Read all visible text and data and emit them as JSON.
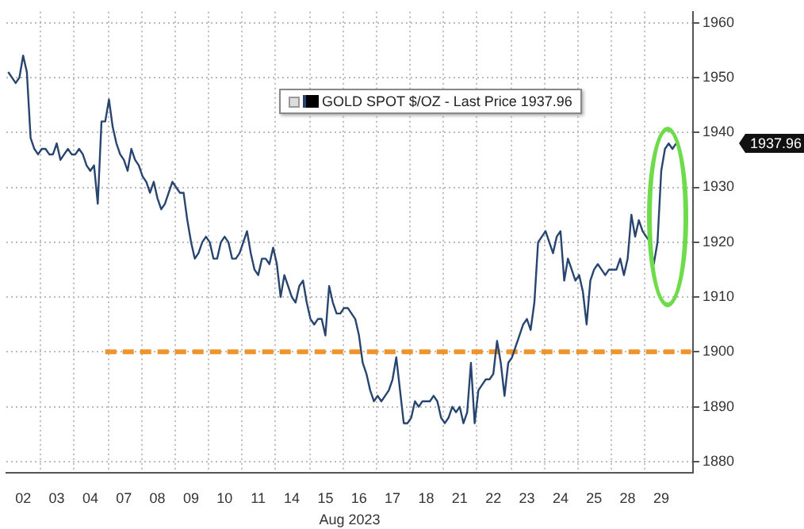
{
  "chart_data": {
    "type": "line",
    "xlabel": "Aug 2023",
    "legend": "top",
    "grid": true,
    "line_style": "solid",
    "marker": "none",
    "ylim": [
      1878,
      1962
    ],
    "categories": [
      null,
      null,
      null,
      null,
      "02",
      null,
      null,
      null,
      null,
      null,
      null,
      null,
      null,
      "03",
      null,
      null,
      null,
      null,
      null,
      null,
      null,
      null,
      "04",
      null,
      null,
      null,
      null,
      null,
      null,
      null,
      null,
      "07",
      null,
      null,
      null,
      null,
      null,
      null,
      null,
      null,
      "08",
      null,
      null,
      null,
      null,
      null,
      null,
      null,
      null,
      "09",
      null,
      null,
      null,
      null,
      null,
      null,
      null,
      null,
      "10",
      null,
      null,
      null,
      null,
      null,
      null,
      null,
      null,
      "11",
      null,
      null,
      null,
      null,
      null,
      null,
      null,
      null,
      "14",
      null,
      null,
      null,
      null,
      null,
      null,
      null,
      null,
      "15",
      null,
      null,
      null,
      null,
      null,
      null,
      null,
      null,
      "16",
      null,
      null,
      null,
      null,
      null,
      null,
      null,
      null,
      "17",
      null,
      null,
      null,
      null,
      null,
      null,
      null,
      null,
      "18",
      null,
      null,
      null,
      null,
      null,
      null,
      null,
      null,
      "21",
      null,
      null,
      null,
      null,
      null,
      null,
      null,
      null,
      "22",
      null,
      null,
      null,
      null,
      null,
      null,
      null,
      null,
      "23",
      null,
      null,
      null,
      null,
      null,
      null,
      null,
      null,
      "24",
      null,
      null,
      null,
      null,
      null,
      null,
      null,
      null,
      "25",
      null,
      null,
      null,
      null,
      null,
      null,
      null,
      null,
      "28",
      null,
      null,
      null,
      null,
      null,
      null,
      null,
      null,
      "29",
      null,
      null,
      null,
      null,
      null,
      null,
      null,
      null
    ],
    "yticks": [
      1880,
      1890,
      1900,
      1910,
      1920,
      1930,
      1940,
      1950,
      1960
    ],
    "annotations": [
      "1937.96"
    ],
    "series": [
      {
        "name": "GOLD SPOT $/OZ - Last Price 1937.96",
        "color": "#27456e",
        "values": [
          1951,
          1950,
          1949,
          1950,
          1954,
          1951,
          1939,
          1937,
          1936,
          1937,
          1937,
          1936,
          1936,
          1938,
          1935,
          1936,
          1937,
          1936,
          1936,
          1937,
          1936,
          1934,
          1933,
          1934,
          1927,
          1942,
          1942,
          1946,
          1941,
          1938,
          1936,
          1935,
          1933,
          1937,
          1935,
          1934,
          1932,
          1931,
          1929,
          1931,
          1928,
          1926,
          1927,
          1929,
          1931,
          1930,
          1929,
          1929,
          1924,
          1920,
          1917,
          1918,
          1920,
          1921,
          1920,
          1917,
          1917,
          1920,
          1921,
          1920,
          1917,
          1917,
          1918,
          1920,
          1922,
          1918,
          1915,
          1914,
          1917,
          1917,
          1916,
          1919,
          1916,
          1910,
          1914,
          1912,
          1910,
          1909,
          1912,
          1913,
          1909,
          1906,
          1905,
          1906,
          1906,
          1903,
          1912,
          1909,
          1907,
          1907,
          1908,
          1908,
          1907,
          1906,
          1903,
          1898,
          1896,
          1893,
          1891,
          1892,
          1891,
          1892,
          1893,
          1895,
          1899,
          1893,
          1887,
          1887,
          1888,
          1891,
          1890,
          1891,
          1891,
          1891,
          1892,
          1891,
          1888,
          1887,
          1888,
          1890,
          1889,
          1890,
          1887,
          1889,
          1898,
          1887,
          1893,
          1894,
          1895,
          1895,
          1896,
          1902,
          1898,
          1892,
          1898,
          1899,
          1901,
          1903,
          1905,
          1906,
          1904,
          1909,
          1920,
          1921,
          1922,
          1920,
          1918,
          1921,
          1922,
          1913,
          1917,
          1915,
          1913,
          1914,
          1911,
          1905,
          1913,
          1915,
          1916,
          1915,
          1914,
          1915,
          1915,
          1915,
          1917,
          1914,
          1917,
          1925,
          1921,
          1924,
          1922,
          1921,
          1920,
          1916,
          1920,
          1933,
          1937,
          1938,
          1937,
          1938,
          null,
          null,
          null,
          null
        ]
      },
      {
        "color": "#f0932b",
        "line_style": "dashed",
        "values": [
          null,
          null,
          null,
          null,
          null,
          null,
          null,
          null,
          null,
          null,
          null,
          null,
          null,
          null,
          null,
          null,
          null,
          null,
          null,
          null,
          null,
          null,
          null,
          null,
          null,
          null,
          1900,
          1900,
          1900,
          1900,
          1900,
          1900,
          1900,
          1900,
          1900,
          1900,
          1900,
          1900,
          1900,
          1900,
          1900,
          1900,
          1900,
          1900,
          1900,
          1900,
          1900,
          1900,
          1900,
          1900,
          1900,
          1900,
          1900,
          1900,
          1900,
          1900,
          1900,
          1900,
          1900,
          1900,
          1900,
          1900,
          1900,
          1900,
          1900,
          1900,
          1900,
          1900,
          1900,
          1900,
          1900,
          1900,
          1900,
          1900,
          1900,
          1900,
          1900,
          1900,
          1900,
          1900,
          1900,
          1900,
          1900,
          1900,
          1900,
          1900,
          1900,
          1900,
          1900,
          1900,
          1900,
          1900,
          1900,
          1900,
          1900,
          1900,
          1900,
          1900,
          1900,
          1900,
          1900,
          1900,
          1900,
          1900,
          1900,
          1900,
          1900,
          1900,
          1900,
          1900,
          1900,
          1900,
          1900,
          1900,
          1900,
          1900,
          1900,
          1900,
          1900,
          1900,
          1900,
          1900,
          1900,
          1900,
          1900,
          1900,
          1900,
          1900,
          1900,
          1900,
          1900,
          1900,
          1900,
          1900,
          1900,
          1900,
          1900,
          1900,
          1900,
          1900,
          1900,
          1900,
          1900,
          1900,
          1900,
          1900,
          1900,
          1900,
          1900,
          1900,
          1900,
          1900,
          1900,
          1900,
          1900,
          1900,
          1900,
          1900,
          1900,
          1900,
          1900,
          1900,
          1900,
          1900,
          1900,
          1900,
          1900,
          1900,
          1900,
          1900,
          1900,
          1900,
          1900,
          1900,
          1900,
          1900,
          1900,
          1900,
          1900,
          1900,
          1900,
          1900,
          1900,
          1900
        ]
      }
    ]
  }
}
